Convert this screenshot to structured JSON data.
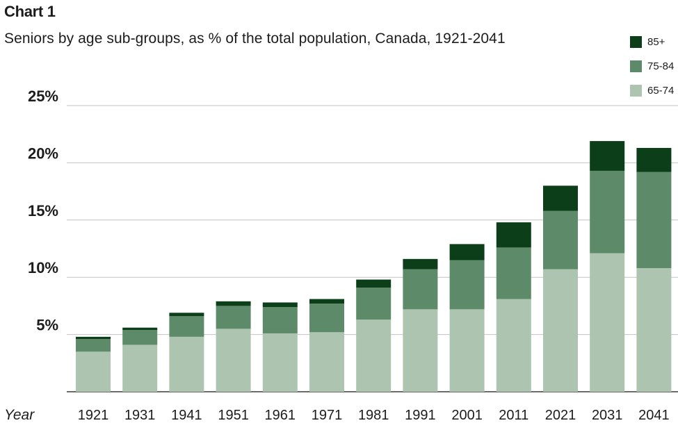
{
  "header": {
    "chart_number": "Chart 1"
  },
  "chart_data": {
    "type": "bar",
    "stacked": true,
    "title": "Seniors by age sub-groups, as % of the total population, Canada, 1921-2041",
    "xlabel": "Year",
    "ylabel": "",
    "ylim": [
      0,
      25
    ],
    "yticks": [
      5,
      10,
      15,
      20,
      25
    ],
    "ytick_labels": [
      "5%",
      "10%",
      "15%",
      "20%",
      "25%"
    ],
    "grid": true,
    "legend_position": "top-right",
    "categories": [
      "1921",
      "1931",
      "1941",
      "1951",
      "1961",
      "1971",
      "1981",
      "1991",
      "2001",
      "2011",
      "2021",
      "2031",
      "2041"
    ],
    "series": [
      {
        "name": "65-74",
        "color": "#adc5b0",
        "values": [
          3.5,
          4.1,
          4.8,
          5.5,
          5.1,
          5.2,
          6.3,
          7.2,
          7.2,
          8.1,
          10.7,
          12.1,
          10.8
        ]
      },
      {
        "name": "75-84",
        "color": "#5d8b69",
        "values": [
          1.1,
          1.3,
          1.8,
          2.0,
          2.3,
          2.5,
          2.8,
          3.5,
          4.3,
          4.5,
          5.1,
          7.2,
          8.4
        ]
      },
      {
        "name": "85+",
        "color": "#0c3e1a",
        "values": [
          0.2,
          0.2,
          0.3,
          0.4,
          0.4,
          0.4,
          0.7,
          0.9,
          1.4,
          2.2,
          2.2,
          2.6,
          2.1
        ]
      }
    ],
    "legend_order": [
      "85+",
      "75-84",
      "65-74"
    ]
  }
}
